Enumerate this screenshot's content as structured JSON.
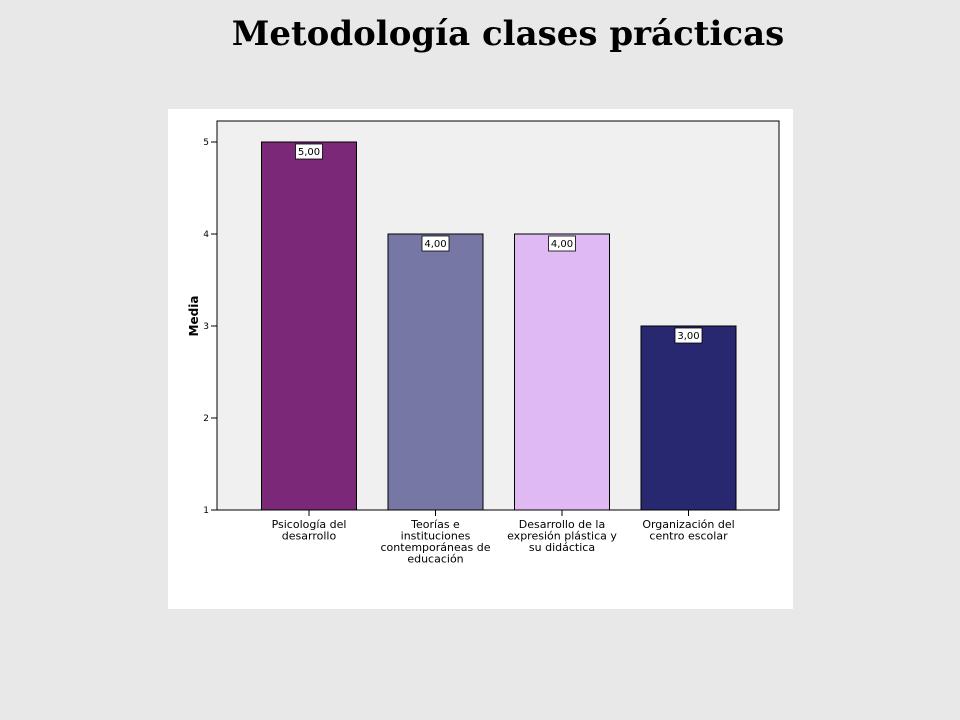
{
  "title": "Metodología clases prácticas",
  "chart_data": {
    "type": "bar",
    "ylabel": "Media",
    "xlabel": "",
    "ylim": [
      1,
      5
    ],
    "yticks": [
      1,
      2,
      3,
      4,
      5
    ],
    "categories": [
      [
        "Psicología del",
        "desarrollo"
      ],
      [
        "Teorías e",
        "instituciones",
        "contemporáneas de",
        "educación"
      ],
      [
        "Desarrollo de la",
        "expresión plástica y",
        "su didáctica"
      ],
      [
        "Organización del",
        "centro escolar"
      ]
    ],
    "values": [
      5,
      4,
      4,
      3
    ],
    "data_labels": [
      "5,00",
      "4,00",
      "4,00",
      "3,00"
    ],
    "colors": [
      "#7b2878",
      "#7777a6",
      "#dfbaf2",
      "#282870"
    ],
    "plot_background": "#f0f0f0",
    "grid": false
  }
}
